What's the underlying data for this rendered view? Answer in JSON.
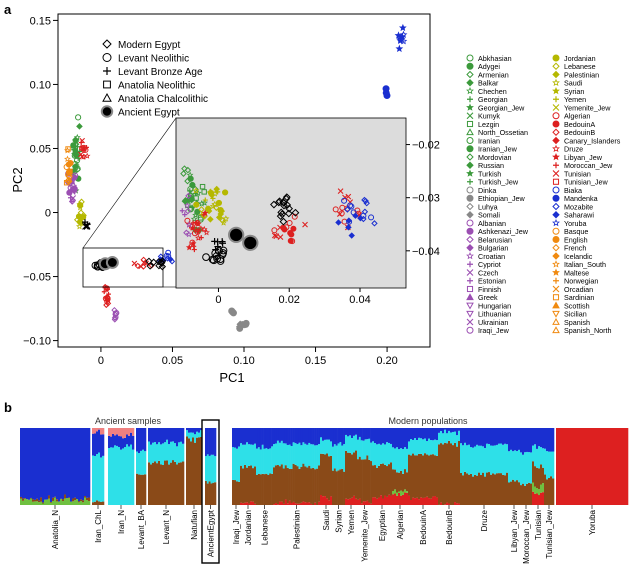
{
  "panels": {
    "a": "a",
    "b": "b"
  },
  "chart_data": [
    {
      "type": "scatter",
      "panel": "a",
      "xlabel": "PC1",
      "ylabel": "PC2",
      "xlim": [
        -0.03,
        0.23
      ],
      "ylim": [
        -0.105,
        0.155
      ],
      "xticks": [
        {
          "v": 0,
          "t": "0"
        },
        {
          "v": 0.05,
          "t": "0.05"
        },
        {
          "v": 0.1,
          "t": "0.10"
        },
        {
          "v": 0.15,
          "t": "0.15"
        },
        {
          "v": 0.2,
          "t": "0.20"
        }
      ],
      "yticks": [
        {
          "v": 0.15,
          "t": "0.15"
        },
        {
          "v": 0.1,
          "t": "0.10"
        },
        {
          "v": 0.05,
          "t": "0.05"
        },
        {
          "v": 0,
          "t": "0"
        },
        {
          "v": -0.05,
          "t": "−0.05"
        },
        {
          "v": -0.1,
          "t": "−0.10"
        }
      ],
      "ancient_legend": [
        {
          "label": "Modern Egypt",
          "shape": "diamond"
        },
        {
          "label": "Levant Neolithic",
          "shape": "circle"
        },
        {
          "label": "Levant Bronze Age",
          "shape": "plus"
        },
        {
          "label": "Anatolia Neolithic",
          "shape": "square"
        },
        {
          "label": "Anatolia Chalcolithic",
          "shape": "triangle"
        },
        {
          "label": "Ancient Egypt",
          "shape": "bigdot"
        }
      ],
      "populations_col1": [
        {
          "label": "Abkhasian",
          "color": "#3c9a3c",
          "shape": "circle"
        },
        {
          "label": "Adygei",
          "color": "#3c9a3c",
          "shape": "dot"
        },
        {
          "label": "Armenian",
          "color": "#3c9a3c",
          "shape": "diamond"
        },
        {
          "label": "Balkar",
          "color": "#3c9a3c",
          "shape": "fdiamond"
        },
        {
          "label": "Chechen",
          "color": "#3c9a3c",
          "shape": "star"
        },
        {
          "label": "Georgian",
          "color": "#3c9a3c",
          "shape": "plus"
        },
        {
          "label": "Georgian_Jew",
          "color": "#3c9a3c",
          "shape": "fstar"
        },
        {
          "label": "Kumyk",
          "color": "#3c9a3c",
          "shape": "cross"
        },
        {
          "label": "Lezgin",
          "color": "#3c9a3c",
          "shape": "square"
        },
        {
          "label": "North_Ossetian",
          "color": "#3c9a3c",
          "shape": "triangle"
        },
        {
          "label": "Iranian",
          "color": "#3c9a3c",
          "shape": "circle"
        },
        {
          "label": "Iranian_Jew",
          "color": "#3c9a3c",
          "shape": "dot"
        },
        {
          "label": "Mordovian",
          "color": "#3c9a3c",
          "shape": "diamond"
        },
        {
          "label": "Russian",
          "color": "#3c9a3c",
          "shape": "fdiamond"
        },
        {
          "label": "Turkish",
          "color": "#3c9a3c",
          "shape": "fstar"
        },
        {
          "label": "Turkish_Jew",
          "color": "#3c9a3c",
          "shape": "plus"
        },
        {
          "label": "Dinka",
          "color": "#888888",
          "shape": "circle"
        },
        {
          "label": "Ethiopian_Jew",
          "color": "#888888",
          "shape": "dot"
        },
        {
          "label": "Luhya",
          "color": "#888888",
          "shape": "diamond"
        },
        {
          "label": "Somali",
          "color": "#888888",
          "shape": "fdiamond"
        },
        {
          "label": "Albanian",
          "color": "#9b4fb2",
          "shape": "circle"
        },
        {
          "label": "Ashkenazi_Jew",
          "color": "#9b4fb2",
          "shape": "dot"
        },
        {
          "label": "Belarusian",
          "color": "#9b4fb2",
          "shape": "diamond"
        },
        {
          "label": "Bulgarian",
          "color": "#9b4fb2",
          "shape": "fdiamond"
        },
        {
          "label": "Croatian",
          "color": "#9b4fb2",
          "shape": "star"
        },
        {
          "label": "Cypriot",
          "color": "#9b4fb2",
          "shape": "plus"
        },
        {
          "label": "Czech",
          "color": "#9b4fb2",
          "shape": "cross"
        },
        {
          "label": "Estonian",
          "color": "#9b4fb2",
          "shape": "plus"
        },
        {
          "label": "Finnish",
          "color": "#9b4fb2",
          "shape": "square"
        },
        {
          "label": "Greek",
          "color": "#9b4fb2",
          "shape": "ftriangle"
        },
        {
          "label": "Hungarian",
          "color": "#9b4fb2",
          "shape": "dtriangle"
        },
        {
          "label": "Lithuanian",
          "color": "#9b4fb2",
          "shape": "dtriangle"
        },
        {
          "label": "Ukrainian",
          "color": "#9b4fb2",
          "shape": "cross"
        },
        {
          "label": "Iraqi_Jew",
          "color": "#9b4fb2",
          "shape": "circle"
        }
      ],
      "populations_col2": [
        {
          "label": "Jordanian",
          "color": "#b5b800",
          "shape": "dot"
        },
        {
          "label": "Lebanese",
          "color": "#b5b800",
          "shape": "diamond"
        },
        {
          "label": "Palestinian",
          "color": "#b5b800",
          "shape": "fdiamond"
        },
        {
          "label": "Saudi",
          "color": "#b5b800",
          "shape": "star"
        },
        {
          "label": "Syrian",
          "color": "#b5b800",
          "shape": "fstar"
        },
        {
          "label": "Yemen",
          "color": "#b5b800",
          "shape": "plus"
        },
        {
          "label": "Yemenite_Jew",
          "color": "#b5b800",
          "shape": "cross"
        },
        {
          "label": "Algerian",
          "color": "#dd2020",
          "shape": "circle"
        },
        {
          "label": "BedouinA",
          "color": "#dd2020",
          "shape": "dot"
        },
        {
          "label": "BedouinB",
          "color": "#dd2020",
          "shape": "diamond"
        },
        {
          "label": "Canary_Islanders",
          "color": "#dd2020",
          "shape": "fdiamond"
        },
        {
          "label": "Druze",
          "color": "#dd2020",
          "shape": "star"
        },
        {
          "label": "Libyan_Jew",
          "color": "#dd2020",
          "shape": "fstar"
        },
        {
          "label": "Moroccan_Jew",
          "color": "#dd2020",
          "shape": "plus"
        },
        {
          "label": "Tunisian",
          "color": "#dd2020",
          "shape": "cross"
        },
        {
          "label": "Tunisian_Jew",
          "color": "#dd2020",
          "shape": "square"
        },
        {
          "label": "Biaka",
          "color": "#1a2fd0",
          "shape": "circle"
        },
        {
          "label": "Mandenka",
          "color": "#1a2fd0",
          "shape": "dot"
        },
        {
          "label": "Mozabite",
          "color": "#1a2fd0",
          "shape": "diamond"
        },
        {
          "label": "Saharawi",
          "color": "#1a2fd0",
          "shape": "fdiamond"
        },
        {
          "label": "Yoruba",
          "color": "#1a2fd0",
          "shape": "star"
        },
        {
          "label": "Basque",
          "color": "#f08a10",
          "shape": "circle"
        },
        {
          "label": "English",
          "color": "#f08a10",
          "shape": "dot"
        },
        {
          "label": "French",
          "color": "#f08a10",
          "shape": "diamond"
        },
        {
          "label": "Icelandic",
          "color": "#f08a10",
          "shape": "fdiamond"
        },
        {
          "label": "Italian_South",
          "color": "#f08a10",
          "shape": "star"
        },
        {
          "label": "Maltese",
          "color": "#f08a10",
          "shape": "fstar"
        },
        {
          "label": "Norwegian",
          "color": "#f08a10",
          "shape": "plus"
        },
        {
          "label": "Orcadian",
          "color": "#f08a10",
          "shape": "cross"
        },
        {
          "label": "Sardinian",
          "color": "#f08a10",
          "shape": "square"
        },
        {
          "label": "Scottish",
          "color": "#f08a10",
          "shape": "ftriangle"
        },
        {
          "label": "Sicilian",
          "color": "#f08a10",
          "shape": "dtriangle"
        },
        {
          "label": "Spanish",
          "color": "#f08a10",
          "shape": "triangle"
        },
        {
          "label": "Spanish_North",
          "color": "#f08a10",
          "shape": "triangle"
        }
      ],
      "inset": {
        "xlim": [
          -0.012,
          0.053
        ],
        "ylim": [
          -0.047,
          -0.015
        ],
        "xticks": [
          {
            "v": 0,
            "t": "0"
          },
          {
            "v": 0.02,
            "t": "0.02"
          },
          {
            "v": 0.04,
            "t": "0.04"
          }
        ],
        "yticks": [
          {
            "v": -0.02,
            "t": "−0.02"
          },
          {
            "v": -0.03,
            "t": "−0.03"
          },
          {
            "v": -0.04,
            "t": "−0.04"
          }
        ],
        "background": "#dcdcdc"
      }
    },
    {
      "type": "bar",
      "panel": "b",
      "stacked": true,
      "group_headers": [
        "Ancient samples",
        "Modern populations"
      ],
      "component_colors": [
        "#1a2fd0",
        "#2ee0e8",
        "#8a4a18",
        "#dd2020",
        "#6fc040",
        "#f08080"
      ],
      "categories": [
        "Anatolia_N",
        "Iran_ChL",
        "Iran_N",
        "Levant_BA",
        "Levant_N",
        "Natufian",
        "AncientEgypt",
        "Iraqi_Jew",
        "Jordanian",
        "Lebanese",
        "Palestinian",
        "Saudi",
        "Syrian",
        "Yemen",
        "Yemenite_Jew",
        "Egyptian",
        "Algerian",
        "BedouinA",
        "BedouinB",
        "Druze",
        "Libyan_Jew",
        "Moroccan_Jew",
        "Tunisian",
        "Tunisian_Jew",
        "Yoruba"
      ],
      "highlight": "AncientEgypt"
    }
  ]
}
